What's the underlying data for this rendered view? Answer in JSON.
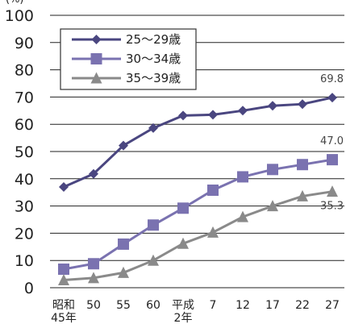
{
  "chart_data": {
    "type": "line",
    "y_unit_label": "(%)",
    "ylim": [
      0,
      100
    ],
    "y_ticks": [
      "0",
      "10",
      "20",
      "30",
      "40",
      "50",
      "60",
      "70",
      "80",
      "90",
      "100"
    ],
    "grid": "horizontal",
    "legend_position": "top-left",
    "x_tick_labels": [
      [
        "昭和",
        "45年"
      ],
      [
        "50"
      ],
      [
        "55"
      ],
      [
        "60"
      ],
      [
        "平成",
        "2年"
      ],
      [
        "7"
      ],
      [
        "12"
      ],
      [
        "17"
      ],
      [
        "22"
      ],
      [
        "27"
      ]
    ],
    "series": [
      {
        "name": "25〜29歳",
        "marker": "diamond",
        "color": "#4a4680",
        "values": [
          37.0,
          41.8,
          52.2,
          58.6,
          63.2,
          63.5,
          65.0,
          66.8,
          67.4,
          69.8
        ],
        "end_label": "69.8"
      },
      {
        "name": "30〜34歳",
        "marker": "square",
        "color": "#7a72b0",
        "values": [
          6.8,
          8.8,
          16.0,
          23.0,
          29.2,
          35.8,
          40.7,
          43.4,
          45.2,
          47.0
        ],
        "end_label": "47.0"
      },
      {
        "name": "35〜39歳",
        "marker": "triangle",
        "color": "#8a8a8a",
        "values": [
          2.8,
          3.6,
          5.5,
          10.0,
          16.2,
          20.3,
          26.0,
          30.0,
          33.6,
          35.3
        ],
        "end_label": "35.3"
      }
    ]
  }
}
